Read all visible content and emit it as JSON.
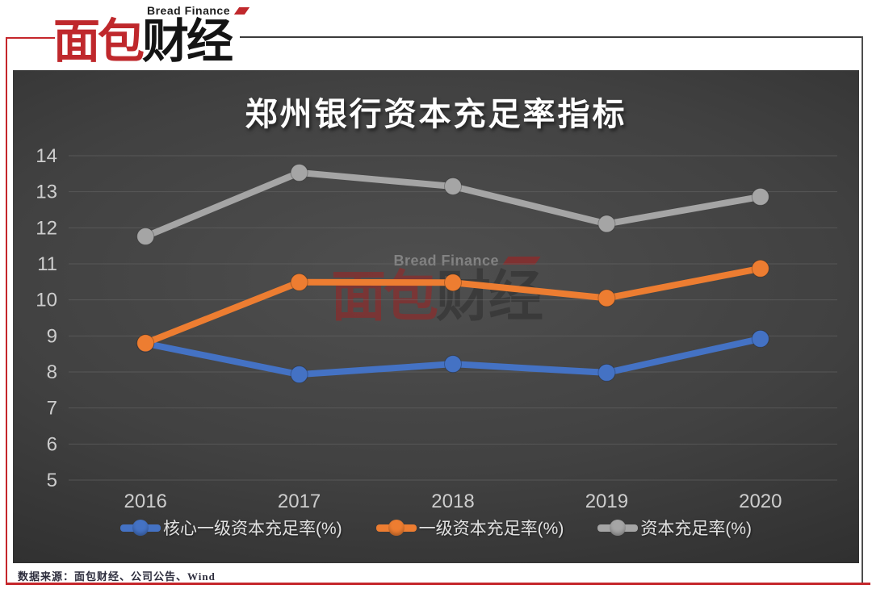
{
  "logo": {
    "brand_en": "Bread Finance",
    "brand_zh_red": "面包",
    "brand_zh_black": "财经"
  },
  "watermark": {
    "brand_en": "Bread Finance",
    "brand_zh_red": "面包",
    "brand_zh_black": "财经"
  },
  "footer": {
    "source": "数据来源：面包财经、公司公告、Wind"
  },
  "colors": {
    "brand_red": "#c0282c",
    "axis_text": "#cdcdcd",
    "legend_text": "#e2e2e2",
    "gridline": "#6a6a6a",
    "panel_bg_center": "#4f4f4f",
    "panel_bg_edge": "#222222"
  },
  "chart_data": {
    "type": "line",
    "title": "郑州银行资本充足率指标",
    "categories": [
      "2016",
      "2017",
      "2018",
      "2019",
      "2020"
    ],
    "series": [
      {
        "name": "核心一级资本充足率(%)",
        "color": "#4472C4",
        "values": [
          8.79,
          7.93,
          8.22,
          7.98,
          8.92
        ]
      },
      {
        "name": "一级资本充足率(%)",
        "color": "#ED7D31",
        "values": [
          8.8,
          10.49,
          10.48,
          10.05,
          10.87
        ]
      },
      {
        "name": "资本充足率(%)",
        "color": "#A5A5A5",
        "values": [
          11.76,
          13.53,
          13.15,
          12.11,
          12.86
        ]
      }
    ],
    "ylim": [
      5,
      14
    ],
    "ytick_step": 1,
    "grid": true,
    "legend_position": "bottom"
  }
}
